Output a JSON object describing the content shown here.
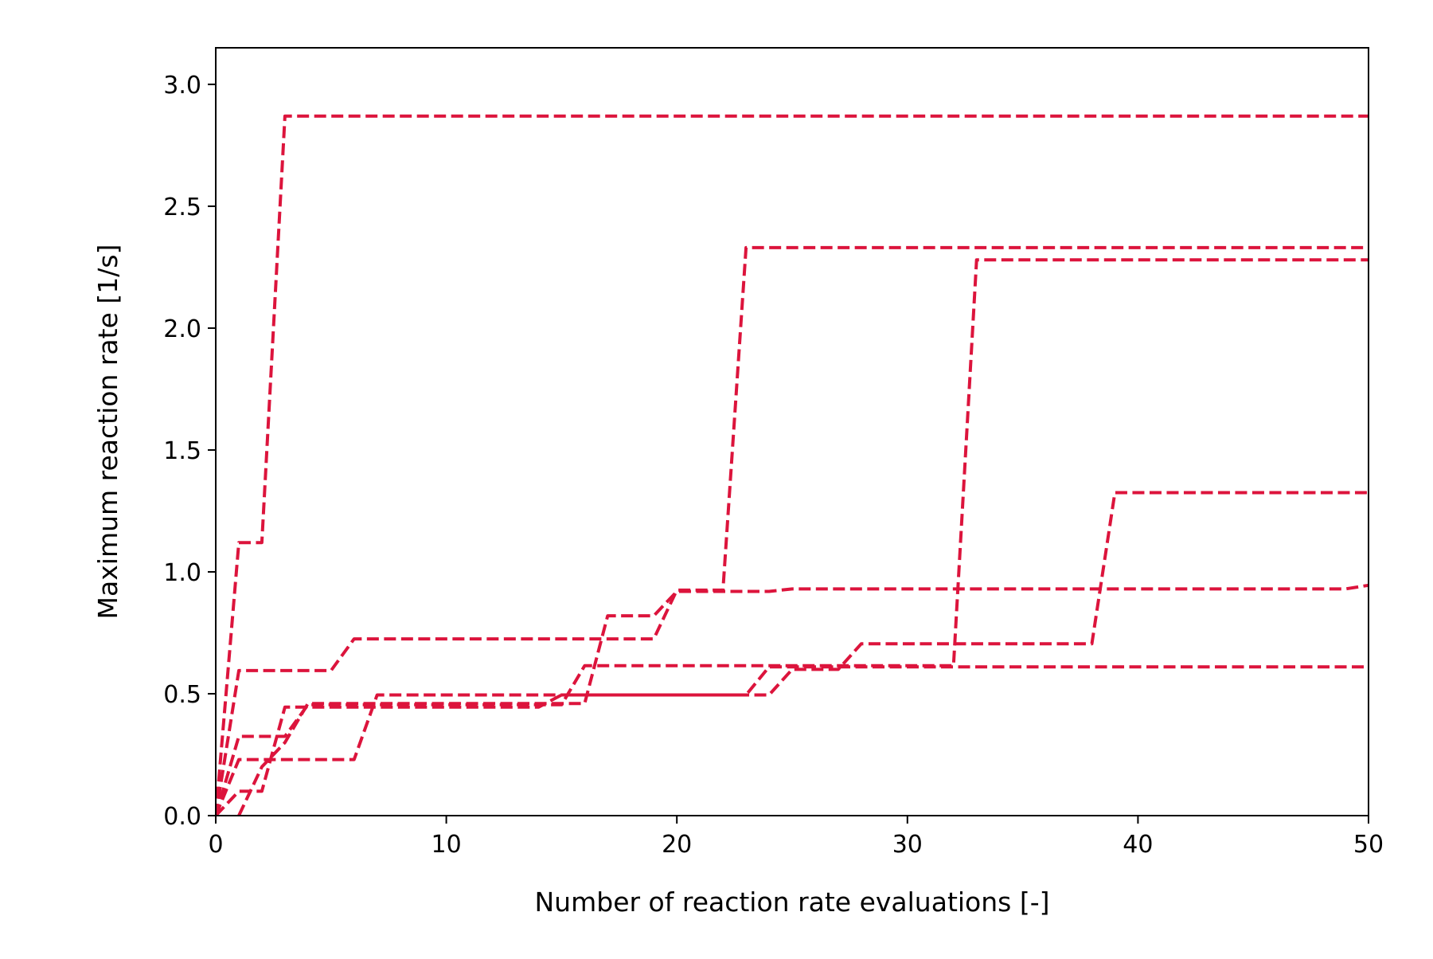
{
  "chart_data": {
    "type": "line",
    "title": "",
    "xlabel": "Number of reaction rate evaluations [-]",
    "ylabel": "Maximum reaction rate [1/s]",
    "xlim": [
      0,
      50
    ],
    "ylim": [
      0,
      3.15
    ],
    "xticks": [
      0,
      10,
      20,
      30,
      40,
      50
    ],
    "xtick_labels": [
      "0",
      "10",
      "20",
      "30",
      "40",
      "50"
    ],
    "yticks": [
      0,
      0.5,
      1.0,
      1.5,
      2.0,
      2.5,
      3.0
    ],
    "ytick_labels": [
      "0.0",
      "0.5",
      "1.0",
      "1.5",
      "2.0",
      "2.5",
      "3.0"
    ],
    "grid": false,
    "legend": "none",
    "line_style": "dashed",
    "line_color": "#dc143c",
    "series": [
      {
        "x": [
          0,
          1,
          2,
          3,
          50
        ],
        "y": [
          0,
          1.12,
          1.12,
          2.87,
          2.87
        ]
      },
      {
        "x": [
          0,
          1,
          5,
          6,
          19,
          20,
          22,
          23,
          50
        ],
        "y": [
          0,
          0.595,
          0.595,
          0.725,
          0.725,
          0.925,
          0.925,
          2.33,
          2.33
        ]
      },
      {
        "x": [
          0,
          1,
          3,
          4,
          15,
          16,
          32,
          33,
          50
        ],
        "y": [
          0,
          0.325,
          0.325,
          0.455,
          0.455,
          0.615,
          0.615,
          2.28,
          2.28
        ]
      },
      {
        "x": [
          0,
          1,
          2,
          3,
          14,
          15,
          24,
          25,
          27,
          28,
          38,
          39,
          50
        ],
        "y": [
          0,
          0.1,
          0.1,
          0.445,
          0.445,
          0.495,
          0.495,
          0.6,
          0.6,
          0.705,
          0.705,
          1.325,
          1.325
        ]
      },
      {
        "x": [
          0,
          1,
          6,
          7,
          23,
          24,
          25,
          50
        ],
        "y": [
          0,
          0.23,
          0.23,
          0.495,
          0.495,
          0.61,
          0.61,
          0.61
        ]
      },
      {
        "x": [
          1,
          2,
          3,
          4,
          16,
          17,
          19,
          20,
          24,
          25,
          49,
          50
        ],
        "y": [
          0,
          0.2,
          0.3,
          0.46,
          0.46,
          0.82,
          0.82,
          0.92,
          0.92,
          0.93,
          0.93,
          0.945
        ]
      }
    ]
  }
}
